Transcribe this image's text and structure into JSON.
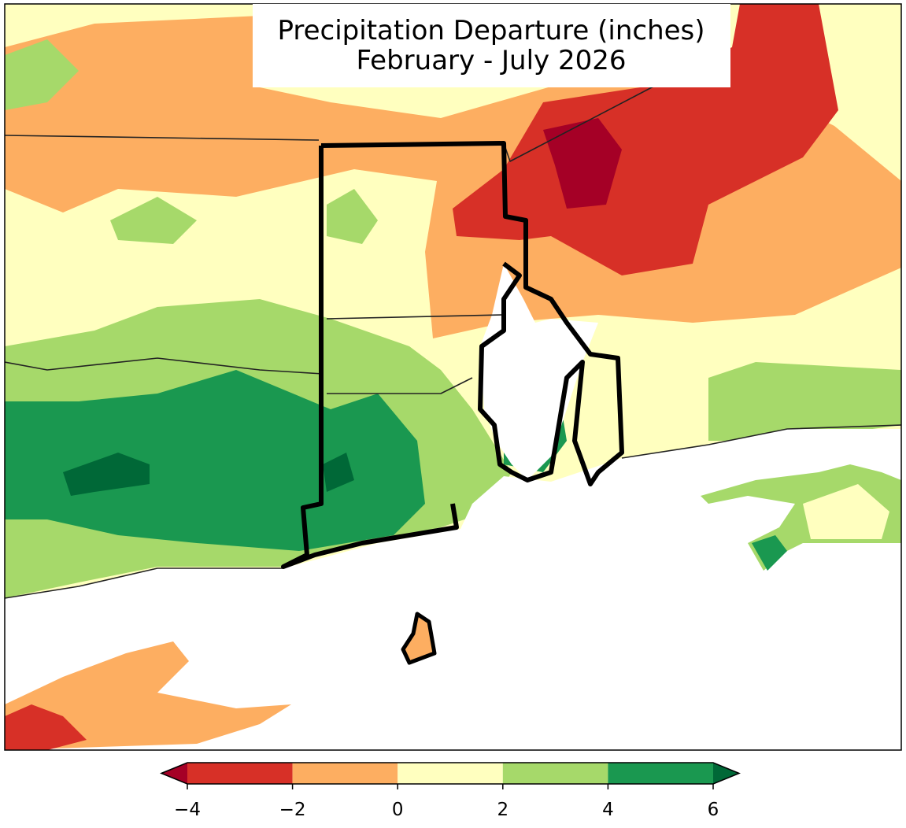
{
  "map": {
    "title": [
      "Precipitation Departure (inches)",
      "February - July 2026"
    ],
    "colorbar": {
      "ticks": [
        {
          "value": -4,
          "label": "−4"
        },
        {
          "value": -2,
          "label": "−2"
        },
        {
          "value": 0,
          "label": "0"
        },
        {
          "value": 2,
          "label": "2"
        },
        {
          "value": 4,
          "label": "4"
        },
        {
          "value": 6,
          "label": "6"
        }
      ],
      "colors": [
        "#d73027",
        "#fdae61",
        "#ffffbf",
        "#a6d96a",
        "#1a9850"
      ],
      "extend_colors": [
        "#a50026",
        "#006837"
      ]
    }
  }
}
